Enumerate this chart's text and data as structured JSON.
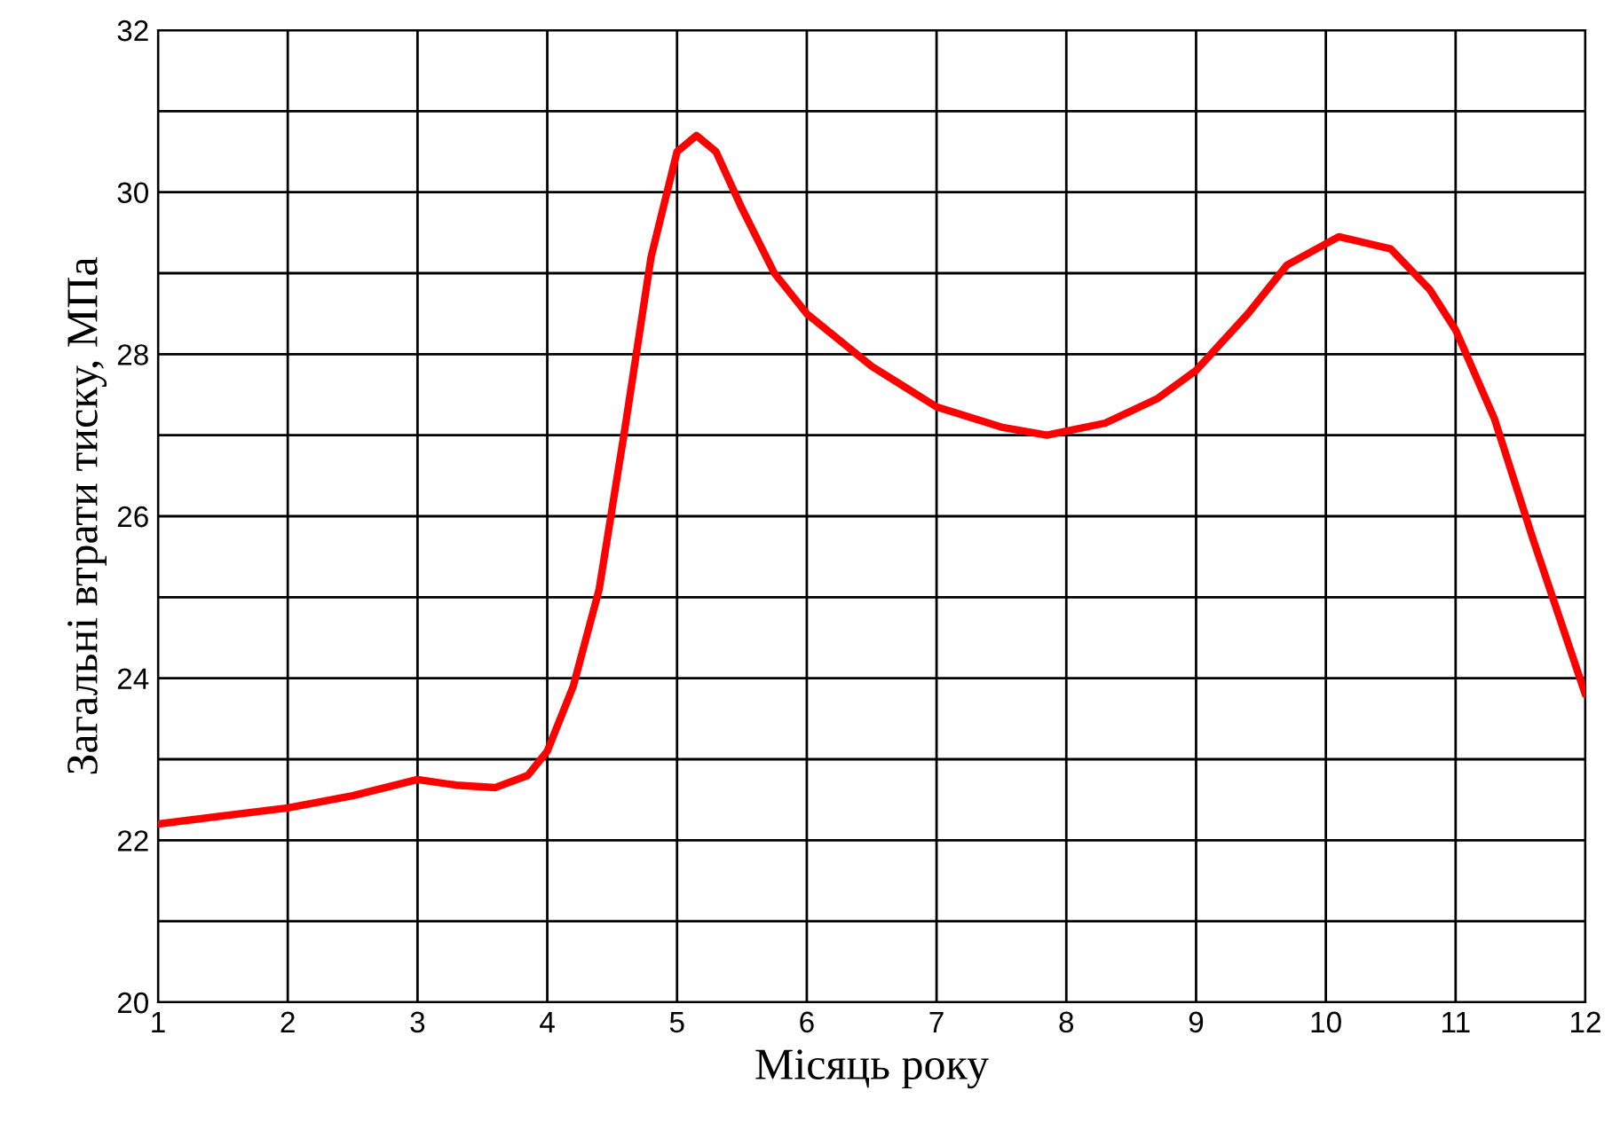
{
  "chart_data": {
    "type": "line",
    "xlabel": "Місяць року",
    "ylabel": "Загальні втрати тиску, МПа",
    "series": [
      {
        "color": "#ff0000",
        "x": [
          1,
          2,
          2.5,
          3,
          3.3,
          3.6,
          3.85,
          4,
          4.2,
          4.4,
          4.6,
          4.8,
          5,
          5.15,
          5.3,
          5.5,
          5.75,
          6,
          6.5,
          7,
          7.5,
          7.85,
          8.3,
          8.7,
          9,
          9.4,
          9.7,
          10.1,
          10.5,
          10.8,
          11,
          11.3,
          11.6,
          12
        ],
        "values": [
          22.2,
          22.4,
          22.55,
          22.75,
          22.68,
          22.65,
          22.8,
          23.1,
          23.9,
          25.1,
          27.1,
          29.2,
          30.5,
          30.7,
          30.5,
          29.8,
          29.0,
          28.5,
          27.85,
          27.35,
          27.1,
          27.0,
          27.15,
          27.45,
          27.8,
          28.5,
          29.1,
          29.45,
          29.3,
          28.8,
          28.3,
          27.2,
          25.7,
          23.8
        ]
      }
    ],
    "xlim": [
      1,
      12
    ],
    "xticks": [
      1,
      2,
      3,
      4,
      5,
      6,
      7,
      8,
      9,
      10,
      11,
      12
    ],
    "ylim": [
      20,
      32
    ],
    "yticks": [
      20,
      {
        "value": 21,
        "label": null
      },
      22,
      {
        "value": 23,
        "label": null
      },
      24,
      {
        "value": 25,
        "label": null
      },
      26,
      {
        "value": 27,
        "label": null
      },
      28,
      {
        "value": 29,
        "label": null
      },
      30,
      {
        "value": 31,
        "label": null
      },
      32
    ],
    "grid": true,
    "marker": "none",
    "line_style": "solid"
  }
}
